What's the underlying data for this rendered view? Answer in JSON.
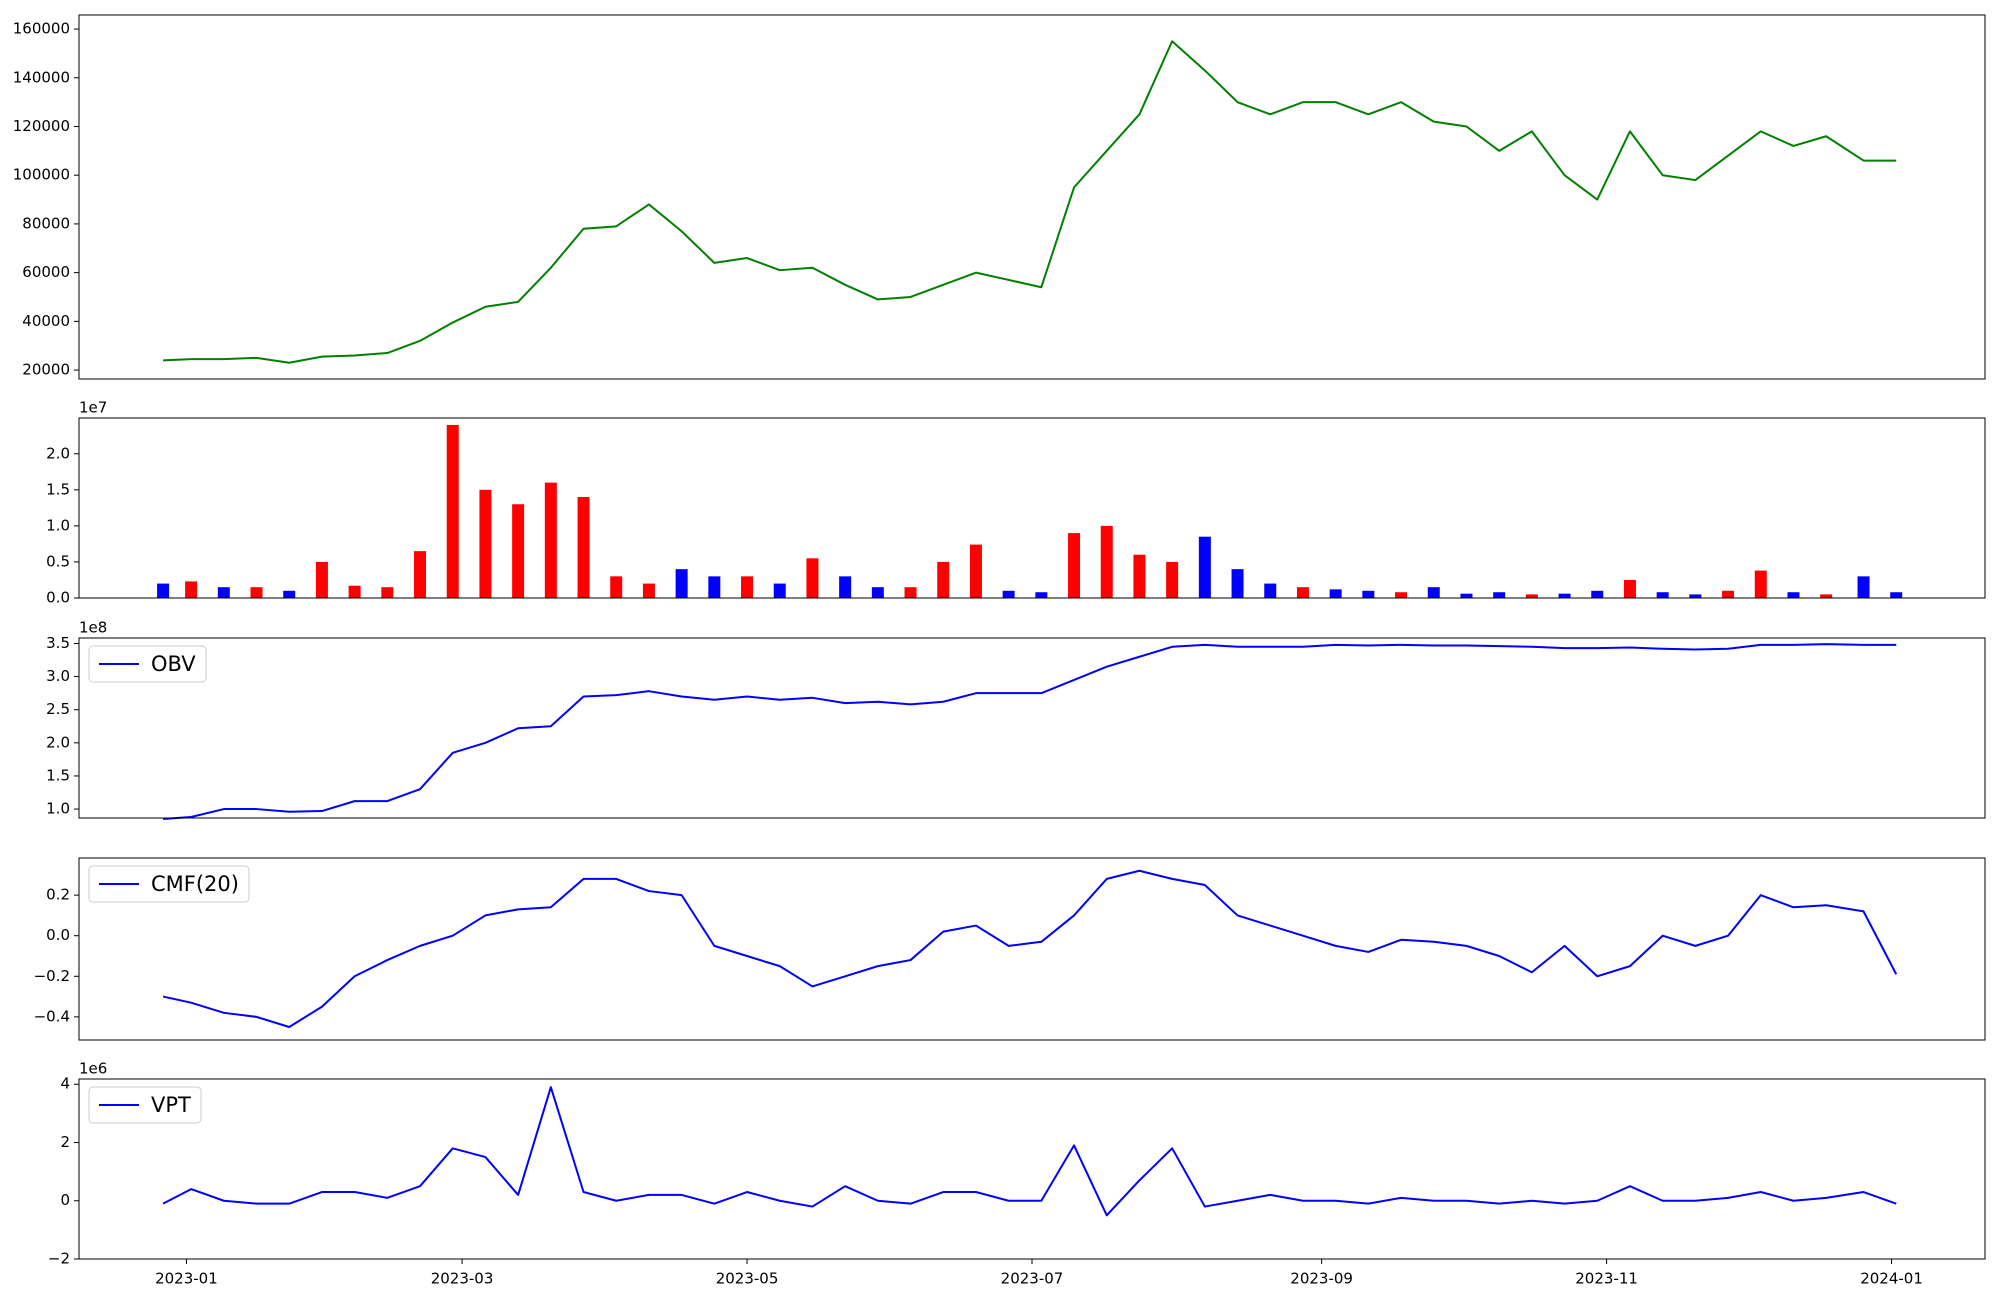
{
  "chart_data": [
    {
      "type": "line",
      "color": "green",
      "x": [
        "2022-12-27",
        "2023-01-02",
        "2023-01-09",
        "2023-01-16",
        "2023-01-23",
        "2023-01-30",
        "2023-02-06",
        "2023-02-13",
        "2023-02-20",
        "2023-02-27",
        "2023-03-06",
        "2023-03-13",
        "2023-03-20",
        "2023-03-27",
        "2023-04-03",
        "2023-04-10",
        "2023-04-17",
        "2023-04-24",
        "2023-05-01",
        "2023-05-08",
        "2023-05-15",
        "2023-05-22",
        "2023-05-29",
        "2023-06-05",
        "2023-06-12",
        "2023-06-19",
        "2023-06-26",
        "2023-07-03",
        "2023-07-10",
        "2023-07-17",
        "2023-07-24",
        "2023-07-31",
        "2023-08-07",
        "2023-08-14",
        "2023-08-21",
        "2023-08-28",
        "2023-09-04",
        "2023-09-11",
        "2023-09-18",
        "2023-09-25",
        "2023-10-02",
        "2023-10-09",
        "2023-10-16",
        "2023-10-23",
        "2023-10-30",
        "2023-11-06",
        "2023-11-13",
        "2023-11-20",
        "2023-11-27",
        "2023-12-04",
        "2023-12-11",
        "2023-12-18",
        "2023-12-26",
        "2024-01-02"
      ],
      "values": [
        24000,
        24500,
        24500,
        25000,
        23000,
        25500,
        26000,
        27000,
        32000,
        39500,
        46000,
        48000,
        62000,
        78000,
        79000,
        88000,
        77000,
        64000,
        66000,
        61000,
        62000,
        55000,
        49000,
        50000,
        55000,
        60000,
        57000,
        54000,
        95000,
        110000,
        125000,
        155000,
        143000,
        130000,
        125000,
        130000,
        130000,
        125000,
        130000,
        122000,
        120000,
        110000,
        118000,
        100000,
        90000,
        118000,
        100000,
        98000,
        108000,
        118000,
        112000,
        116000,
        106000,
        106000
      ],
      "xlim": [
        "2022-12-09",
        "2024-01-21"
      ],
      "ylim": [
        16330,
        165770
      ],
      "yticks": [
        20000,
        40000,
        60000,
        80000,
        100000,
        120000,
        140000,
        160000
      ]
    },
    {
      "type": "bar",
      "offset_label": "1e7",
      "x": [
        "2022-12-27",
        "2023-01-02",
        "2023-01-09",
        "2023-01-16",
        "2023-01-23",
        "2023-01-30",
        "2023-02-06",
        "2023-02-13",
        "2023-02-20",
        "2023-02-27",
        "2023-03-06",
        "2023-03-13",
        "2023-03-20",
        "2023-03-27",
        "2023-04-03",
        "2023-04-10",
        "2023-04-17",
        "2023-04-24",
        "2023-05-01",
        "2023-05-08",
        "2023-05-15",
        "2023-05-22",
        "2023-05-29",
        "2023-06-05",
        "2023-06-12",
        "2023-06-19",
        "2023-06-26",
        "2023-07-03",
        "2023-07-10",
        "2023-07-17",
        "2023-07-24",
        "2023-07-31",
        "2023-08-07",
        "2023-08-14",
        "2023-08-21",
        "2023-08-28",
        "2023-09-04",
        "2023-09-11",
        "2023-09-18",
        "2023-09-25",
        "2023-10-02",
        "2023-10-09",
        "2023-10-16",
        "2023-10-23",
        "2023-10-30",
        "2023-11-06",
        "2023-11-13",
        "2023-11-20",
        "2023-11-27",
        "2023-12-04",
        "2023-12-11",
        "2023-12-18",
        "2023-12-26",
        "2024-01-02"
      ],
      "values": [
        2000000,
        2300000,
        1500000,
        1500000,
        1000000,
        5000000,
        1700000,
        1500000,
        6500000,
        24000000,
        15000000,
        13000000,
        16000000,
        14000000,
        3000000,
        2000000,
        4000000,
        3000000,
        3000000,
        2000000,
        5500000,
        3000000,
        1500000,
        1500000,
        5000000,
        7400000,
        1000000,
        800000,
        9000000,
        10000000,
        6000000,
        5000000,
        8500000,
        4000000,
        2000000,
        1500000,
        1200000,
        1000000,
        800000,
        1500000,
        600000,
        800000,
        500000,
        600000,
        1000000,
        2500000,
        800000,
        500000,
        1000000,
        3800000,
        800000,
        500000,
        3000000,
        800000
      ],
      "colors": [
        "blue",
        "red",
        "blue",
        "red",
        "blue",
        "red",
        "red",
        "red",
        "red",
        "red",
        "red",
        "red",
        "red",
        "red",
        "red",
        "red",
        "blue",
        "blue",
        "red",
        "blue",
        "red",
        "blue",
        "blue",
        "red",
        "red",
        "red",
        "blue",
        "blue",
        "red",
        "red",
        "red",
        "red",
        "blue",
        "blue",
        "blue",
        "red",
        "blue",
        "blue",
        "red",
        "blue",
        "blue",
        "blue",
        "red",
        "blue",
        "blue",
        "red",
        "blue",
        "blue",
        "red",
        "red",
        "blue",
        "red",
        "blue",
        "blue"
      ],
      "xlim": [
        "2022-12-09",
        "2024-01-21"
      ],
      "ylim": [
        0,
        24960000
      ],
      "yticks": [
        {
          "value": 0,
          "label": "0.0"
        },
        {
          "value": 5000000,
          "label": "0.5"
        },
        {
          "value": 10000000,
          "label": "1.0"
        },
        {
          "value": 15000000,
          "label": "1.5"
        },
        {
          "value": 20000000,
          "label": "2.0"
        }
      ]
    },
    {
      "type": "line",
      "offset_label": "1e8",
      "legend": "upper left",
      "x": [
        "2022-12-27",
        "2023-01-02",
        "2023-01-09",
        "2023-01-16",
        "2023-01-23",
        "2023-01-30",
        "2023-02-06",
        "2023-02-13",
        "2023-02-20",
        "2023-02-27",
        "2023-03-06",
        "2023-03-13",
        "2023-03-20",
        "2023-03-27",
        "2023-04-03",
        "2023-04-10",
        "2023-04-17",
        "2023-04-24",
        "2023-05-01",
        "2023-05-08",
        "2023-05-15",
        "2023-05-22",
        "2023-05-29",
        "2023-06-05",
        "2023-06-12",
        "2023-06-19",
        "2023-06-26",
        "2023-07-03",
        "2023-07-10",
        "2023-07-17",
        "2023-07-24",
        "2023-07-31",
        "2023-08-07",
        "2023-08-14",
        "2023-08-21",
        "2023-08-28",
        "2023-09-04",
        "2023-09-11",
        "2023-09-18",
        "2023-09-25",
        "2023-10-02",
        "2023-10-09",
        "2023-10-16",
        "2023-10-23",
        "2023-10-30",
        "2023-11-06",
        "2023-11-13",
        "2023-11-20",
        "2023-11-27",
        "2023-12-04",
        "2023-12-11",
        "2023-12-18",
        "2023-12-26",
        "2024-01-02"
      ],
      "series": [
        {
          "name": "OBV",
          "color": "blue",
          "values": [
            85000000,
            88000000,
            100000000,
            100000000,
            96000000,
            97000000,
            112000000,
            112000000,
            130000000,
            185000000,
            200000000,
            222000000,
            225000000,
            270000000,
            272000000,
            278000000,
            270000000,
            265000000,
            270000000,
            265000000,
            268000000,
            260000000,
            262000000,
            258000000,
            262000000,
            275000000,
            275000000,
            275000000,
            295000000,
            315000000,
            330000000,
            345000000,
            348000000,
            345000000,
            345000000,
            345000000,
            348000000,
            347000000,
            348000000,
            347000000,
            347000000,
            346000000,
            345000000,
            343000000,
            343000000,
            344000000,
            342000000,
            341000000,
            342000000,
            348000000,
            348000000,
            349000000,
            348000000,
            348000000
          ]
        }
      ],
      "xlim": [
        "2022-12-09",
        "2024-01-21"
      ],
      "ylim": [
        86500000,
        358300000
      ],
      "yticks": [
        {
          "value": 100000000,
          "label": "1.0"
        },
        {
          "value": 150000000,
          "label": "1.5"
        },
        {
          "value": 200000000,
          "label": "2.0"
        },
        {
          "value": 250000000,
          "label": "2.5"
        },
        {
          "value": 300000000,
          "label": "3.0"
        },
        {
          "value": 350000000,
          "label": "3.5"
        }
      ]
    },
    {
      "type": "line",
      "legend": "upper left",
      "x": [
        "2022-12-27",
        "2023-01-02",
        "2023-01-09",
        "2023-01-16",
        "2023-01-23",
        "2023-01-30",
        "2023-02-06",
        "2023-02-13",
        "2023-02-20",
        "2023-02-27",
        "2023-03-06",
        "2023-03-13",
        "2023-03-20",
        "2023-03-27",
        "2023-04-03",
        "2023-04-10",
        "2023-04-17",
        "2023-04-24",
        "2023-05-01",
        "2023-05-08",
        "2023-05-15",
        "2023-05-22",
        "2023-05-29",
        "2023-06-05",
        "2023-06-12",
        "2023-06-19",
        "2023-06-26",
        "2023-07-03",
        "2023-07-10",
        "2023-07-17",
        "2023-07-24",
        "2023-07-31",
        "2023-08-07",
        "2023-08-14",
        "2023-08-21",
        "2023-08-28",
        "2023-09-04",
        "2023-09-11",
        "2023-09-18",
        "2023-09-25",
        "2023-10-02",
        "2023-10-09",
        "2023-10-16",
        "2023-10-23",
        "2023-10-30",
        "2023-11-06",
        "2023-11-13",
        "2023-11-20",
        "2023-11-27",
        "2023-12-04",
        "2023-12-11",
        "2023-12-18",
        "2023-12-26",
        "2024-01-02"
      ],
      "series": [
        {
          "name": "CMF(20)",
          "color": "blue",
          "values": [
            -0.3,
            -0.33,
            -0.38,
            -0.4,
            -0.45,
            -0.35,
            -0.2,
            -0.12,
            -0.05,
            0.0,
            0.1,
            0.13,
            0.14,
            0.28,
            0.28,
            0.22,
            0.2,
            -0.05,
            -0.1,
            -0.15,
            -0.25,
            -0.2,
            -0.15,
            -0.12,
            0.02,
            0.05,
            -0.05,
            -0.03,
            0.1,
            0.28,
            0.32,
            0.28,
            0.25,
            0.1,
            0.05,
            0.0,
            -0.05,
            -0.08,
            -0.02,
            -0.03,
            -0.05,
            -0.1,
            -0.18,
            -0.05,
            -0.2,
            -0.15,
            0.0,
            -0.05,
            0.0,
            0.2,
            0.14,
            0.15,
            0.12,
            -0.19
          ]
        }
      ],
      "xlim": [
        "2022-12-09",
        "2024-01-21"
      ],
      "ylim": [
        -0.514,
        0.383
      ],
      "yticks": [
        {
          "value": -0.4,
          "label": "−0.4"
        },
        {
          "value": -0.2,
          "label": "−0.2"
        },
        {
          "value": 0,
          "label": "0.0"
        },
        0.2
      ]
    },
    {
      "type": "line",
      "offset_label": "1e6",
      "legend": "upper left",
      "x": [
        "2022-12-27",
        "2023-01-02",
        "2023-01-09",
        "2023-01-16",
        "2023-01-23",
        "2023-01-30",
        "2023-02-06",
        "2023-02-13",
        "2023-02-20",
        "2023-02-27",
        "2023-03-06",
        "2023-03-13",
        "2023-03-20",
        "2023-03-27",
        "2023-04-03",
        "2023-04-10",
        "2023-04-17",
        "2023-04-24",
        "2023-05-01",
        "2023-05-08",
        "2023-05-15",
        "2023-05-22",
        "2023-05-29",
        "2023-06-05",
        "2023-06-12",
        "2023-06-19",
        "2023-06-26",
        "2023-07-03",
        "2023-07-10",
        "2023-07-17",
        "2023-07-24",
        "2023-07-31",
        "2023-08-07",
        "2023-08-14",
        "2023-08-21",
        "2023-08-28",
        "2023-09-04",
        "2023-09-11",
        "2023-09-18",
        "2023-09-25",
        "2023-10-02",
        "2023-10-09",
        "2023-10-16",
        "2023-10-23",
        "2023-10-30",
        "2023-11-06",
        "2023-11-13",
        "2023-11-20",
        "2023-11-27",
        "2023-12-04",
        "2023-12-11",
        "2023-12-18",
        "2023-12-26",
        "2024-01-02"
      ],
      "series": [
        {
          "name": "VPT",
          "color": "blue",
          "values": [
            -100000,
            400000,
            0,
            -100000,
            -100000,
            300000,
            300000,
            100000,
            500000,
            1800000,
            1500000,
            200000,
            3900000,
            300000,
            0,
            200000,
            200000,
            -100000,
            300000,
            0,
            -200000,
            500000,
            0,
            -100000,
            300000,
            300000,
            0,
            0,
            1900000,
            -500000,
            700000,
            1800000,
            -200000,
            0,
            200000,
            0,
            0,
            -100000,
            100000,
            0,
            0,
            -100000,
            0,
            -100000,
            0,
            500000,
            0,
            0,
            100000,
            300000,
            0,
            100000,
            300000,
            -100000
          ]
        }
      ],
      "xlim": [
        "2022-12-09",
        "2024-01-21"
      ],
      "ylim": [
        -2000000,
        4180000
      ],
      "yticks": [
        {
          "value": -2000000,
          "label": "−2"
        },
        {
          "value": 0,
          "label": "0"
        },
        {
          "value": 2000000,
          "label": "2"
        },
        {
          "value": 4000000,
          "label": "4"
        }
      ],
      "xticks": [
        {
          "value": "2023-01-01",
          "label": "2023-01"
        },
        {
          "value": "2023-03-01",
          "label": "2023-03"
        },
        {
          "value": "2023-05-01",
          "label": "2023-05"
        },
        {
          "value": "2023-07-01",
          "label": "2023-07"
        },
        {
          "value": "2023-09-01",
          "label": "2023-09"
        },
        {
          "value": "2023-11-01",
          "label": "2023-11"
        },
        {
          "value": "2024-01-01",
          "label": "2024-01"
        }
      ]
    }
  ]
}
